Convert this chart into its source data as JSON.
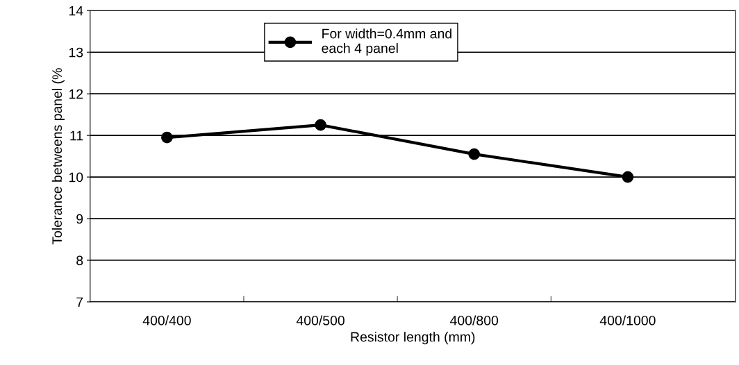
{
  "chart_data": {
    "type": "line",
    "xlabel": "Resistor length (mm)",
    "ylabel": "Tolerance betweens panel (%",
    "categories": [
      "400/400",
      "400/500",
      "400/800",
      "400/1000"
    ],
    "series": [
      {
        "name": "For width=0.4mm and\neach 4 panel",
        "color": "#000000",
        "values": [
          10.95,
          11.25,
          10.55,
          10.0
        ]
      }
    ],
    "ylim": [
      7,
      14
    ],
    "yticks": [
      7,
      8,
      9,
      10,
      11,
      12,
      13,
      14
    ],
    "grid": "y",
    "legend": "top",
    "marker": "circle",
    "line_style": "solid"
  }
}
